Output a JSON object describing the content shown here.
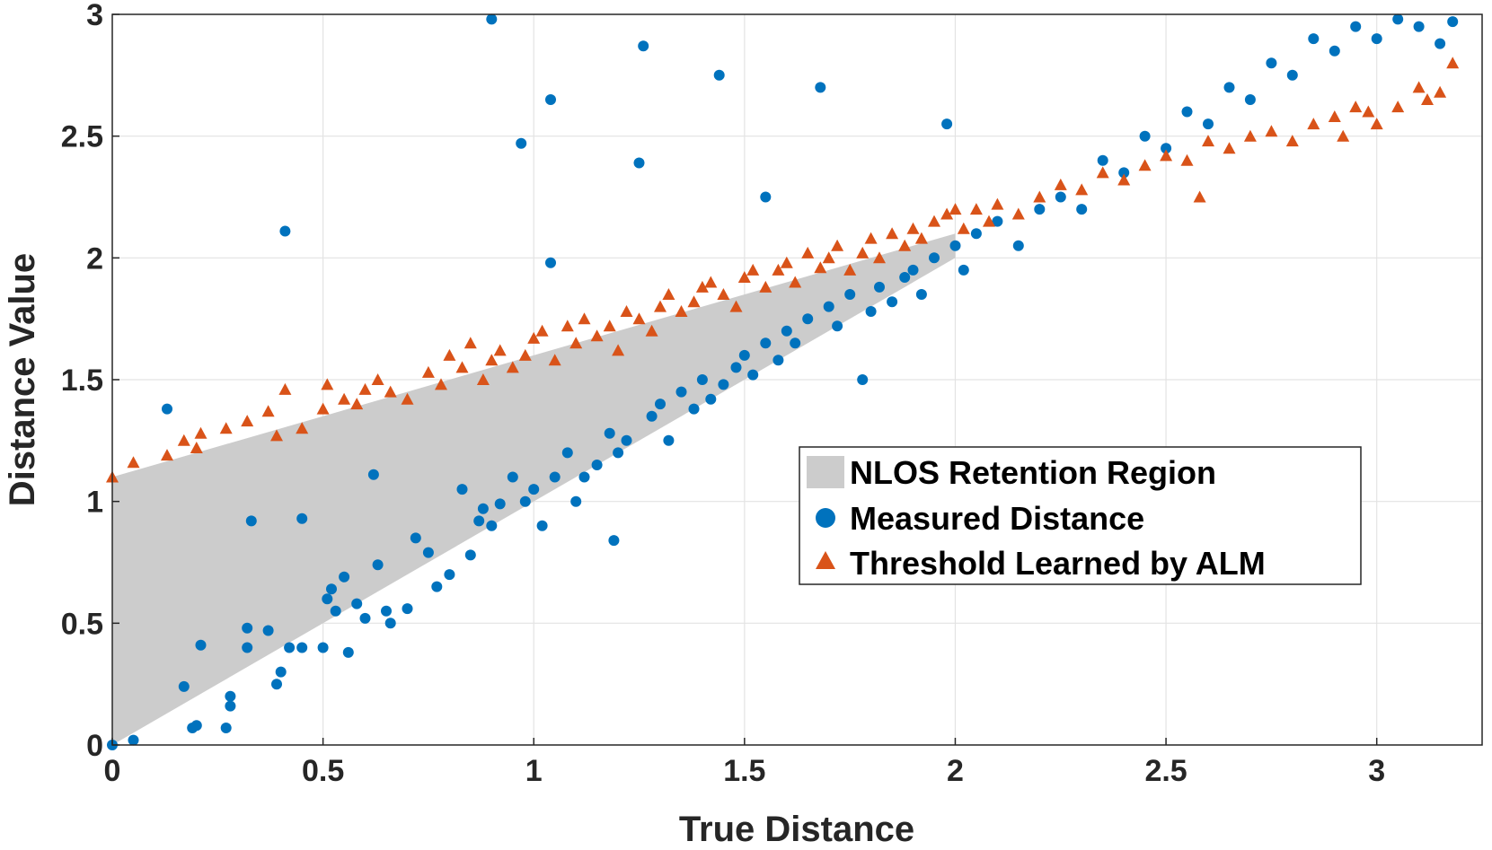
{
  "chart_data": {
    "type": "scatter",
    "title": "",
    "xlabel": "True Distance",
    "ylabel": "Distance Value",
    "xlim": [
      0,
      3.25
    ],
    "ylim": [
      0,
      3
    ],
    "grid": true,
    "x_ticks": [
      0,
      0.5,
      1,
      1.5,
      2,
      2.5,
      3
    ],
    "x_tick_labels": [
      "0",
      "0.5",
      "1",
      "1.5",
      "2",
      "2.5",
      "3"
    ],
    "y_ticks": [
      0,
      0.5,
      1,
      1.5,
      2,
      2.5,
      3
    ],
    "y_tick_labels": [
      "0",
      "0.5",
      "1",
      "1.5",
      "2",
      "2.5",
      "3"
    ],
    "legend_position": "center-right",
    "region": {
      "name": "NLOS Retention Region",
      "color": "#cccccc",
      "polygon": [
        [
          0,
          0
        ],
        [
          0,
          1.1
        ],
        [
          2.0,
          2.1
        ],
        [
          2.0,
          2.0
        ],
        [
          0,
          0
        ]
      ]
    },
    "series": [
      {
        "name": "Measured Distance",
        "marker": "circle",
        "color": "#0072bd",
        "points": [
          [
            0.0,
            0.0
          ],
          [
            0.05,
            0.02
          ],
          [
            0.13,
            1.38
          ],
          [
            0.17,
            0.24
          ],
          [
            0.19,
            0.07
          ],
          [
            0.2,
            0.08
          ],
          [
            0.21,
            0.41
          ],
          [
            0.27,
            0.07
          ],
          [
            0.28,
            0.2
          ],
          [
            0.28,
            0.16
          ],
          [
            0.32,
            0.4
          ],
          [
            0.32,
            0.48
          ],
          [
            0.33,
            0.92
          ],
          [
            0.37,
            0.47
          ],
          [
            0.39,
            0.25
          ],
          [
            0.4,
            0.3
          ],
          [
            0.41,
            2.11
          ],
          [
            0.42,
            0.4
          ],
          [
            0.45,
            0.4
          ],
          [
            0.45,
            0.93
          ],
          [
            0.5,
            0.4
          ],
          [
            0.51,
            0.6
          ],
          [
            0.52,
            0.64
          ],
          [
            0.53,
            0.55
          ],
          [
            0.55,
            0.69
          ],
          [
            0.56,
            0.38
          ],
          [
            0.58,
            0.58
          ],
          [
            0.6,
            0.52
          ],
          [
            0.62,
            1.11
          ],
          [
            0.63,
            0.74
          ],
          [
            0.65,
            0.55
          ],
          [
            0.66,
            0.5
          ],
          [
            0.7,
            0.56
          ],
          [
            0.72,
            0.85
          ],
          [
            0.75,
            0.79
          ],
          [
            0.77,
            0.65
          ],
          [
            0.8,
            0.7
          ],
          [
            0.83,
            1.05
          ],
          [
            0.85,
            0.78
          ],
          [
            0.87,
            0.92
          ],
          [
            0.88,
            0.97
          ],
          [
            0.9,
            0.9
          ],
          [
            0.9,
            2.98
          ],
          [
            0.92,
            0.99
          ],
          [
            0.95,
            1.1
          ],
          [
            0.97,
            2.47
          ],
          [
            0.98,
            1.0
          ],
          [
            1.0,
            1.05
          ],
          [
            1.02,
            0.9
          ],
          [
            1.04,
            2.65
          ],
          [
            1.04,
            1.98
          ],
          [
            1.05,
            1.1
          ],
          [
            1.08,
            1.2
          ],
          [
            1.1,
            1.0
          ],
          [
            1.12,
            1.1
          ],
          [
            1.15,
            1.15
          ],
          [
            1.18,
            1.28
          ],
          [
            1.19,
            0.84
          ],
          [
            1.2,
            1.2
          ],
          [
            1.22,
            1.25
          ],
          [
            1.25,
            2.39
          ],
          [
            1.26,
            2.87
          ],
          [
            1.28,
            1.35
          ],
          [
            1.3,
            1.4
          ],
          [
            1.32,
            1.25
          ],
          [
            1.35,
            1.45
          ],
          [
            1.38,
            1.38
          ],
          [
            1.4,
            1.5
          ],
          [
            1.42,
            1.42
          ],
          [
            1.44,
            2.75
          ],
          [
            1.45,
            1.48
          ],
          [
            1.48,
            1.55
          ],
          [
            1.5,
            1.6
          ],
          [
            1.52,
            1.52
          ],
          [
            1.55,
            2.25
          ],
          [
            1.55,
            1.65
          ],
          [
            1.58,
            1.58
          ],
          [
            1.6,
            1.7
          ],
          [
            1.62,
            1.65
          ],
          [
            1.65,
            1.75
          ],
          [
            1.68,
            2.7
          ],
          [
            1.7,
            1.8
          ],
          [
            1.72,
            1.72
          ],
          [
            1.75,
            1.85
          ],
          [
            1.78,
            1.5
          ],
          [
            1.8,
            1.78
          ],
          [
            1.82,
            1.88
          ],
          [
            1.85,
            1.82
          ],
          [
            1.88,
            1.92
          ],
          [
            1.9,
            1.95
          ],
          [
            1.92,
            1.85
          ],
          [
            1.95,
            2.0
          ],
          [
            1.98,
            2.55
          ],
          [
            2.0,
            2.05
          ],
          [
            2.02,
            1.95
          ],
          [
            2.05,
            2.1
          ],
          [
            2.1,
            2.15
          ],
          [
            2.15,
            2.05
          ],
          [
            2.2,
            2.2
          ],
          [
            2.25,
            2.25
          ],
          [
            2.3,
            2.2
          ],
          [
            2.35,
            2.4
          ],
          [
            2.4,
            2.35
          ],
          [
            2.45,
            2.5
          ],
          [
            2.5,
            2.45
          ],
          [
            2.55,
            2.6
          ],
          [
            2.6,
            2.55
          ],
          [
            2.65,
            2.7
          ],
          [
            2.7,
            2.65
          ],
          [
            2.75,
            2.8
          ],
          [
            2.8,
            2.75
          ],
          [
            2.85,
            2.9
          ],
          [
            2.9,
            2.85
          ],
          [
            2.95,
            2.95
          ],
          [
            3.0,
            2.9
          ],
          [
            3.05,
            2.98
          ],
          [
            3.1,
            2.95
          ],
          [
            3.15,
            2.88
          ],
          [
            3.18,
            2.97
          ]
        ]
      },
      {
        "name": "Threshold Learned by ALM",
        "marker": "triangle",
        "color": "#d95319",
        "points": [
          [
            0.0,
            1.1
          ],
          [
            0.05,
            1.16
          ],
          [
            0.13,
            1.19
          ],
          [
            0.17,
            1.25
          ],
          [
            0.2,
            1.22
          ],
          [
            0.21,
            1.28
          ],
          [
            0.27,
            1.3
          ],
          [
            0.32,
            1.33
          ],
          [
            0.37,
            1.37
          ],
          [
            0.39,
            1.27
          ],
          [
            0.41,
            1.46
          ],
          [
            0.45,
            1.3
          ],
          [
            0.5,
            1.38
          ],
          [
            0.51,
            1.48
          ],
          [
            0.55,
            1.42
          ],
          [
            0.58,
            1.4
          ],
          [
            0.6,
            1.46
          ],
          [
            0.63,
            1.5
          ],
          [
            0.66,
            1.45
          ],
          [
            0.7,
            1.42
          ],
          [
            0.75,
            1.53
          ],
          [
            0.78,
            1.48
          ],
          [
            0.8,
            1.6
          ],
          [
            0.83,
            1.55
          ],
          [
            0.85,
            1.65
          ],
          [
            0.88,
            1.5
          ],
          [
            0.9,
            1.58
          ],
          [
            0.92,
            1.62
          ],
          [
            0.95,
            1.55
          ],
          [
            0.98,
            1.6
          ],
          [
            1.0,
            1.67
          ],
          [
            1.02,
            1.7
          ],
          [
            1.05,
            1.58
          ],
          [
            1.08,
            1.72
          ],
          [
            1.1,
            1.65
          ],
          [
            1.12,
            1.75
          ],
          [
            1.15,
            1.68
          ],
          [
            1.18,
            1.72
          ],
          [
            1.2,
            1.62
          ],
          [
            1.22,
            1.78
          ],
          [
            1.25,
            1.75
          ],
          [
            1.28,
            1.7
          ],
          [
            1.3,
            1.8
          ],
          [
            1.32,
            1.85
          ],
          [
            1.35,
            1.78
          ],
          [
            1.38,
            1.82
          ],
          [
            1.4,
            1.88
          ],
          [
            1.42,
            1.9
          ],
          [
            1.45,
            1.85
          ],
          [
            1.48,
            1.8
          ],
          [
            1.5,
            1.92
          ],
          [
            1.52,
            1.95
          ],
          [
            1.55,
            1.88
          ],
          [
            1.58,
            1.95
          ],
          [
            1.6,
            1.98
          ],
          [
            1.62,
            1.9
          ],
          [
            1.65,
            2.02
          ],
          [
            1.68,
            1.96
          ],
          [
            1.7,
            2.0
          ],
          [
            1.72,
            2.05
          ],
          [
            1.75,
            1.95
          ],
          [
            1.78,
            2.02
          ],
          [
            1.8,
            2.08
          ],
          [
            1.82,
            2.0
          ],
          [
            1.85,
            2.1
          ],
          [
            1.88,
            2.05
          ],
          [
            1.9,
            2.12
          ],
          [
            1.92,
            2.08
          ],
          [
            1.95,
            2.15
          ],
          [
            1.98,
            2.18
          ],
          [
            2.0,
            2.2
          ],
          [
            2.02,
            2.12
          ],
          [
            2.05,
            2.2
          ],
          [
            2.08,
            2.15
          ],
          [
            2.1,
            2.22
          ],
          [
            2.15,
            2.18
          ],
          [
            2.2,
            2.25
          ],
          [
            2.25,
            2.3
          ],
          [
            2.3,
            2.28
          ],
          [
            2.35,
            2.35
          ],
          [
            2.4,
            2.32
          ],
          [
            2.45,
            2.38
          ],
          [
            2.5,
            2.42
          ],
          [
            2.55,
            2.4
          ],
          [
            2.58,
            2.25
          ],
          [
            2.6,
            2.48
          ],
          [
            2.65,
            2.45
          ],
          [
            2.7,
            2.5
          ],
          [
            2.75,
            2.52
          ],
          [
            2.8,
            2.48
          ],
          [
            2.85,
            2.55
          ],
          [
            2.9,
            2.58
          ],
          [
            2.92,
            2.5
          ],
          [
            2.95,
            2.62
          ],
          [
            2.98,
            2.6
          ],
          [
            3.0,
            2.55
          ],
          [
            3.05,
            2.62
          ],
          [
            3.1,
            2.7
          ],
          [
            3.12,
            2.65
          ],
          [
            3.15,
            2.68
          ],
          [
            3.18,
            2.8
          ]
        ]
      }
    ]
  }
}
